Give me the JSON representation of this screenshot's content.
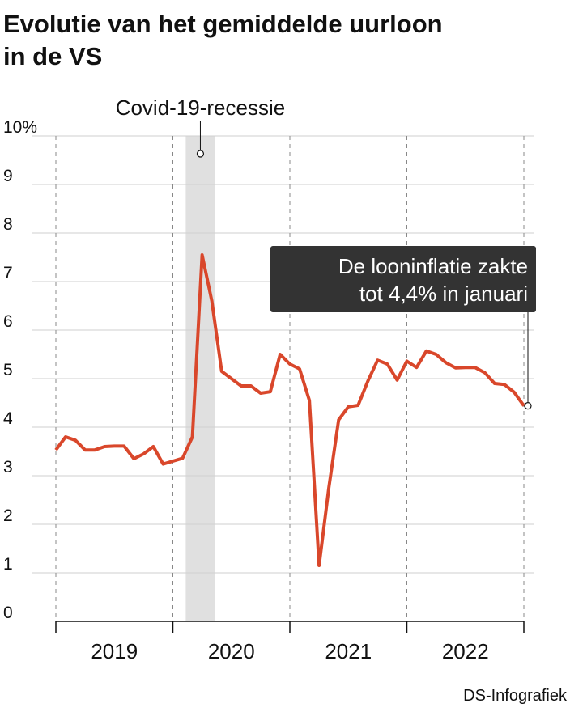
{
  "chart_data": {
    "type": "line",
    "title": [
      "Evolutie van het gemiddelde uurloon",
      "in de VS"
    ],
    "x": [
      2019,
      2019.083,
      2019.167,
      2019.25,
      2019.333,
      2019.417,
      2019.5,
      2019.583,
      2019.667,
      2019.75,
      2019.833,
      2019.917,
      2020,
      2020.083,
      2020.167,
      2020.25,
      2020.333,
      2020.417,
      2020.5,
      2020.583,
      2020.667,
      2020.75,
      2020.833,
      2020.917,
      2021,
      2021.083,
      2021.167,
      2021.25,
      2021.333,
      2021.417,
      2021.5,
      2021.583,
      2021.667,
      2021.75,
      2021.833,
      2021.917,
      2022,
      2022.083,
      2022.167,
      2022.25,
      2022.333,
      2022.417,
      2022.5,
      2022.583,
      2022.667,
      2022.75,
      2022.833,
      2022.917,
      2023
    ],
    "series": [
      {
        "color": "#d9472b",
        "values": [
          3.53,
          3.8,
          3.73,
          3.53,
          3.53,
          3.6,
          3.61,
          3.61,
          3.35,
          3.45,
          3.6,
          3.24,
          3.3,
          3.36,
          3.8,
          7.55,
          6.6,
          5.15,
          5.0,
          4.85,
          4.85,
          4.7,
          4.73,
          5.5,
          5.3,
          5.2,
          4.55,
          1.15,
          2.75,
          4.15,
          4.42,
          4.45,
          4.95,
          5.38,
          5.3,
          4.97,
          5.36,
          5.23,
          5.57,
          5.5,
          5.33,
          5.22,
          5.23,
          5.23,
          5.12,
          4.9,
          4.88,
          4.72,
          4.44
        ]
      }
    ],
    "xlim": [
      2019,
      2023
    ],
    "xticks": [
      2019,
      2020,
      2021,
      2022,
      2023
    ],
    "x_labels": [
      {
        "value": 2019.5,
        "label": "2019"
      },
      {
        "value": 2020.5,
        "label": "2020"
      },
      {
        "value": 2021.5,
        "label": "2021"
      },
      {
        "value": 2022.5,
        "label": "2022"
      }
    ],
    "ylim": [
      0,
      10
    ],
    "yticks": [
      0,
      1,
      2,
      3,
      4,
      5,
      6,
      7,
      8,
      9,
      {
        "value": 10,
        "label": "10%"
      }
    ],
    "grid": true,
    "shaded": {
      "label": "Covid-19-recessie",
      "from": 2020.11,
      "to": 2020.36,
      "color": "#e0e0e0"
    },
    "annotation": {
      "lines": [
        "De looninflatie zakte",
        "tot 4,4% in januari"
      ]
    },
    "source": "DS-Infografiek"
  }
}
